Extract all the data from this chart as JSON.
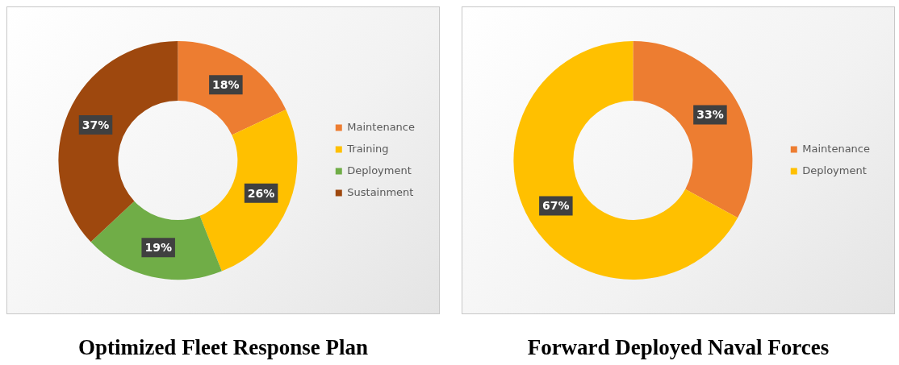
{
  "chart_data": [
    {
      "type": "donut",
      "title": "Optimized Fleet Response Plan",
      "categories": [
        "Maintenance",
        "Training",
        "Deployment",
        "Sustainment"
      ],
      "values": [
        18,
        26,
        19,
        37
      ],
      "value_labels": [
        "18%",
        "26%",
        "19%",
        "37%"
      ],
      "colors": [
        "#ed7d31",
        "#ffc000",
        "#70ad47",
        "#9e480e"
      ],
      "legend": "right"
    },
    {
      "type": "donut",
      "title": "Forward Deployed Naval Forces",
      "categories": [
        "Maintenance",
        "Deployment"
      ],
      "values": [
        33,
        67
      ],
      "value_labels": [
        "33%",
        "67%"
      ],
      "colors": [
        "#ed7d31",
        "#ffc000"
      ],
      "legend": "right"
    }
  ]
}
